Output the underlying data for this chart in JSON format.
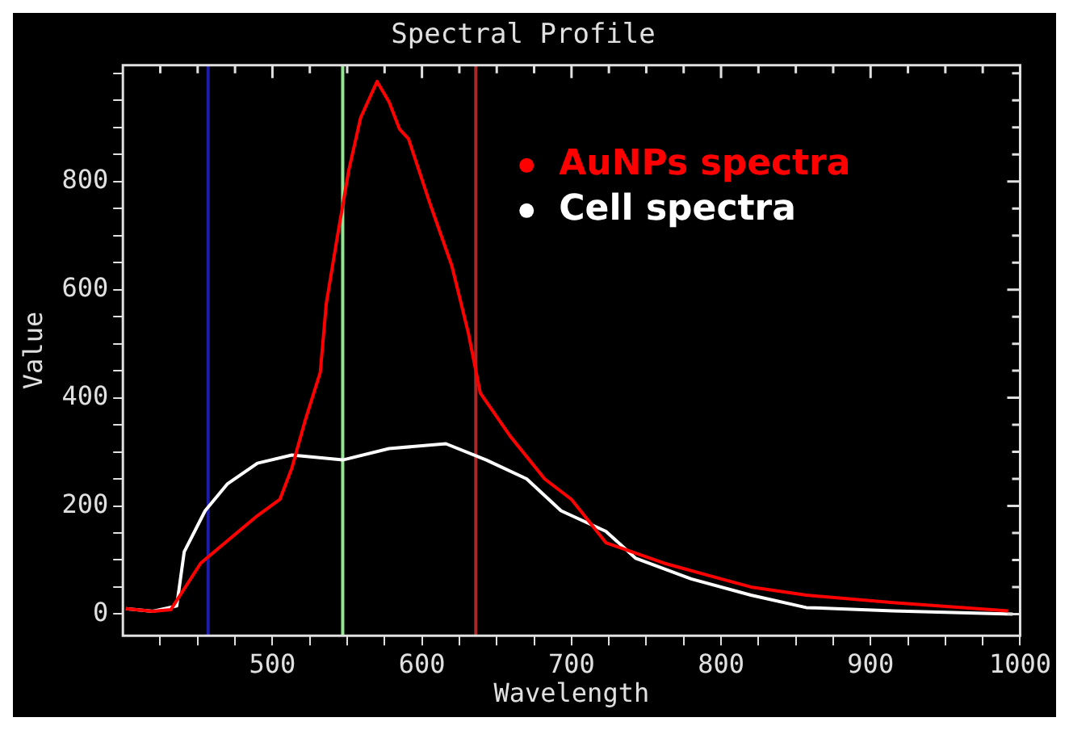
{
  "chart_data": {
    "type": "line",
    "title": "Spectral Profile",
    "xlabel": "Wavelength",
    "ylabel": "Value",
    "xlim": [
      400,
      1000
    ],
    "ylim": [
      -40,
      1015
    ],
    "xticks": [
      {
        "value": 425,
        "label": null
      },
      {
        "value": 450,
        "label": null
      },
      {
        "value": 475,
        "label": null
      },
      500,
      {
        "value": 525,
        "label": null
      },
      {
        "value": 550,
        "label": null
      },
      {
        "value": 575,
        "label": null
      },
      600,
      {
        "value": 625,
        "label": null
      },
      {
        "value": 650,
        "label": null
      },
      {
        "value": 675,
        "label": null
      },
      700,
      {
        "value": 725,
        "label": null
      },
      {
        "value": 750,
        "label": null
      },
      {
        "value": 775,
        "label": null
      },
      800,
      {
        "value": 825,
        "label": null
      },
      {
        "value": 850,
        "label": null
      },
      {
        "value": 875,
        "label": null
      },
      900,
      {
        "value": 925,
        "label": null
      },
      {
        "value": 950,
        "label": null
      },
      {
        "value": 975,
        "label": null
      },
      1000
    ],
    "yticks": [
      0,
      {
        "value": 50,
        "label": null
      },
      {
        "value": 100,
        "label": null
      },
      {
        "value": 150,
        "label": null
      },
      200,
      {
        "value": 250,
        "label": null
      },
      {
        "value": 300,
        "label": null
      },
      {
        "value": 350,
        "label": null
      },
      400,
      {
        "value": 450,
        "label": null
      },
      {
        "value": 500,
        "label": null
      },
      {
        "value": 550,
        "label": null
      },
      600,
      {
        "value": 650,
        "label": null
      },
      {
        "value": 700,
        "label": null
      },
      {
        "value": 750,
        "label": null
      },
      800,
      {
        "value": 850,
        "label": null
      },
      {
        "value": 900,
        "label": null
      },
      {
        "value": 950,
        "label": null
      },
      {
        "value": 1000,
        "label": null
      }
    ],
    "grid": false,
    "legend": "top right",
    "marker": "none",
    "line_style": "solid",
    "ref_lines": [
      {
        "axis": "x",
        "value": 457,
        "color": "#1c1ca8"
      },
      {
        "axis": "x",
        "value": 547,
        "color": "#90e890"
      },
      {
        "axis": "x",
        "value": 636,
        "color": "#a82828"
      }
    ],
    "series": [
      {
        "name": "AuNPs spectra",
        "color": "#ff0000",
        "x": [
          402,
          420,
          432,
          452,
          490,
          505,
          513,
          522,
          532,
          536,
          543,
          551,
          559,
          570,
          578,
          585,
          591,
          605,
          620,
          631,
          639,
          659,
          682,
          700,
          723,
          762,
          800,
          820,
          857,
          915,
          992
        ],
        "values": [
          10,
          5,
          8,
          94,
          182,
          212,
          270,
          359,
          447,
          574,
          691,
          820,
          918,
          985,
          947,
          897,
          879,
          762,
          644,
          520,
          409,
          329,
          250,
          212,
          132,
          94,
          65,
          50,
          35,
          21,
          6
        ]
      },
      {
        "name": "Cell spectra",
        "color": "#ffffff",
        "x": [
          402,
          420,
          436,
          441,
          455,
          470,
          490,
          513,
          547,
          578,
          616,
          643,
          670,
          693,
          723,
          743,
          780,
          820,
          857,
          915,
          995
        ],
        "values": [
          10,
          5,
          15,
          115,
          191,
          241,
          279,
          294,
          285,
          306,
          315,
          285,
          250,
          191,
          153,
          103,
          65,
          35,
          12,
          6,
          0
        ]
      }
    ]
  }
}
